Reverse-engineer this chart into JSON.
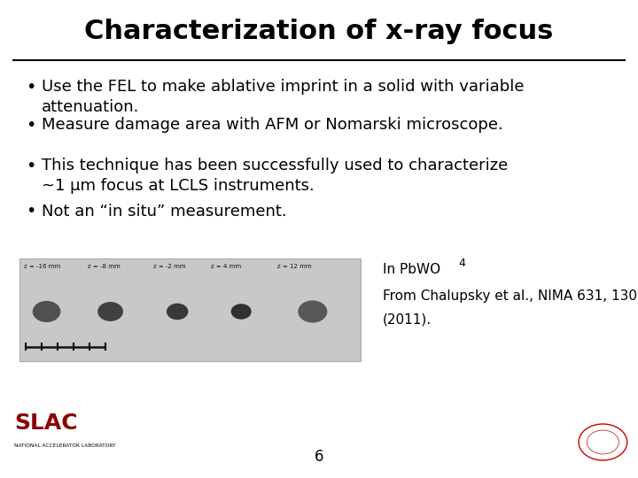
{
  "title": "Characterization of x-ray focus",
  "background_color": "#ffffff",
  "title_color": "#000000",
  "title_fontsize": 22,
  "bullet_points": [
    "Use the FEL to make ablative imprint in a solid with variable\nattenuation.",
    "Measure damage area with AFM or Nomarski microscope.",
    "This technique has been successfully used to characterize\n~1 μm focus at LCLS instruments.",
    "Not an “in situ” measurement."
  ],
  "bullet_fontsize": 13,
  "bullet_color": "#000000",
  "caption_line1": "In PbWO",
  "caption_subscript": "4",
  "caption_line2": "From Chalupsky et al., NIMA 631, 130",
  "caption_line3": "(2011).",
  "caption_fontsize": 11,
  "page_number": "6",
  "separator_color": "#000000",
  "slac_color": "#8B0000",
  "z_labels": [
    "z = -16 mm",
    "z = -8 mm",
    "z = -2 mm",
    "z = 4 mm",
    "z = 12 mm"
  ],
  "img_bg_color": "#c8c8c8",
  "img_border_color": "#aaaaaa",
  "spot_colors": [
    "#505050",
    "#404040",
    "#383838",
    "#303030",
    "#585858"
  ]
}
